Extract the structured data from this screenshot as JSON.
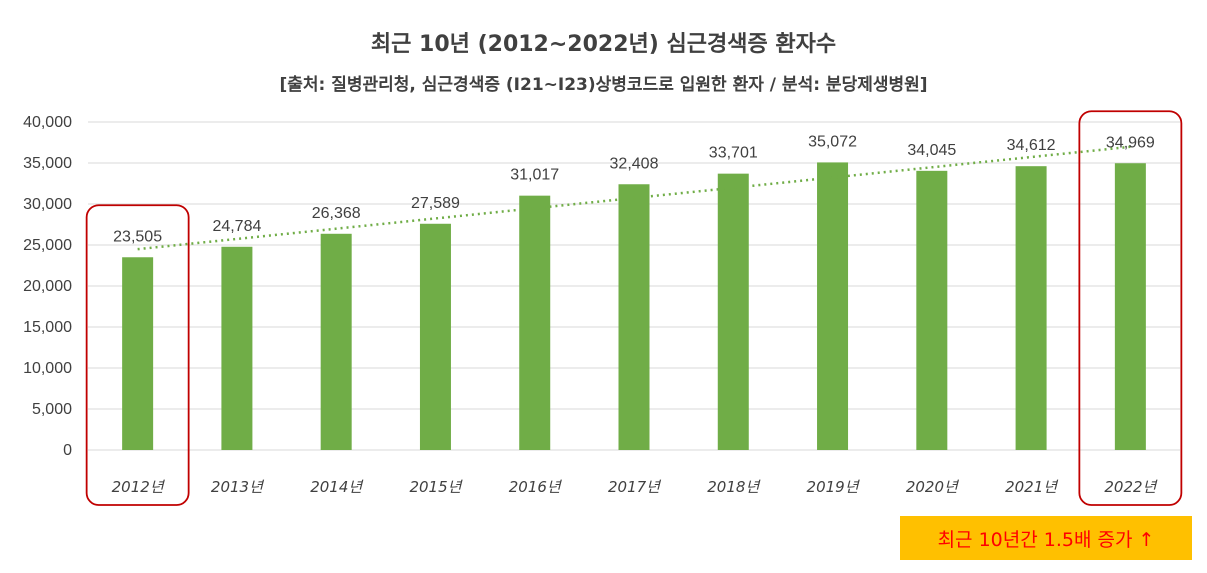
{
  "chart_data": {
    "type": "bar",
    "title": "최근 10년 (2012~2022년) 심근경색증 환자수",
    "subtitle": "[출처: 질병관리청, 심근경색증 (I21~I23)상병코드로 입원한 환자 / 분석: 분당제생병원]",
    "categories": [
      "2012년",
      "2013년",
      "2014년",
      "2015년",
      "2016년",
      "2017년",
      "2018년",
      "2019년",
      "2020년",
      "2021년",
      "2022년"
    ],
    "values": [
      23505,
      24784,
      26368,
      27589,
      31017,
      32408,
      33701,
      35072,
      34045,
      34612,
      34969
    ],
    "data_labels": [
      "23,505",
      "24,784",
      "26,368",
      "27,589",
      "31,017",
      "32,408",
      "33,701",
      "35,072",
      "34,045",
      "34,612",
      "34,969"
    ],
    "yticks": [
      0,
      5000,
      10000,
      15000,
      20000,
      25000,
      30000,
      35000,
      40000
    ],
    "ytick_labels": [
      "0",
      "5,000",
      "10,000",
      "15,000",
      "20,000",
      "25,000",
      "30,000",
      "35,000",
      "40,000"
    ],
    "ylim": [
      0,
      40000
    ],
    "trendline": "linear",
    "highlighted_categories": [
      "2012년",
      "2022년"
    ],
    "grid": true,
    "bar_color": "#70ad47",
    "trend_color": "#70ad47",
    "highlight_color": "#c00000"
  },
  "annotation": {
    "text": "최근 10년간 1.5배 증가 ↑",
    "background": "#ffc000",
    "color": "#ff0000"
  }
}
